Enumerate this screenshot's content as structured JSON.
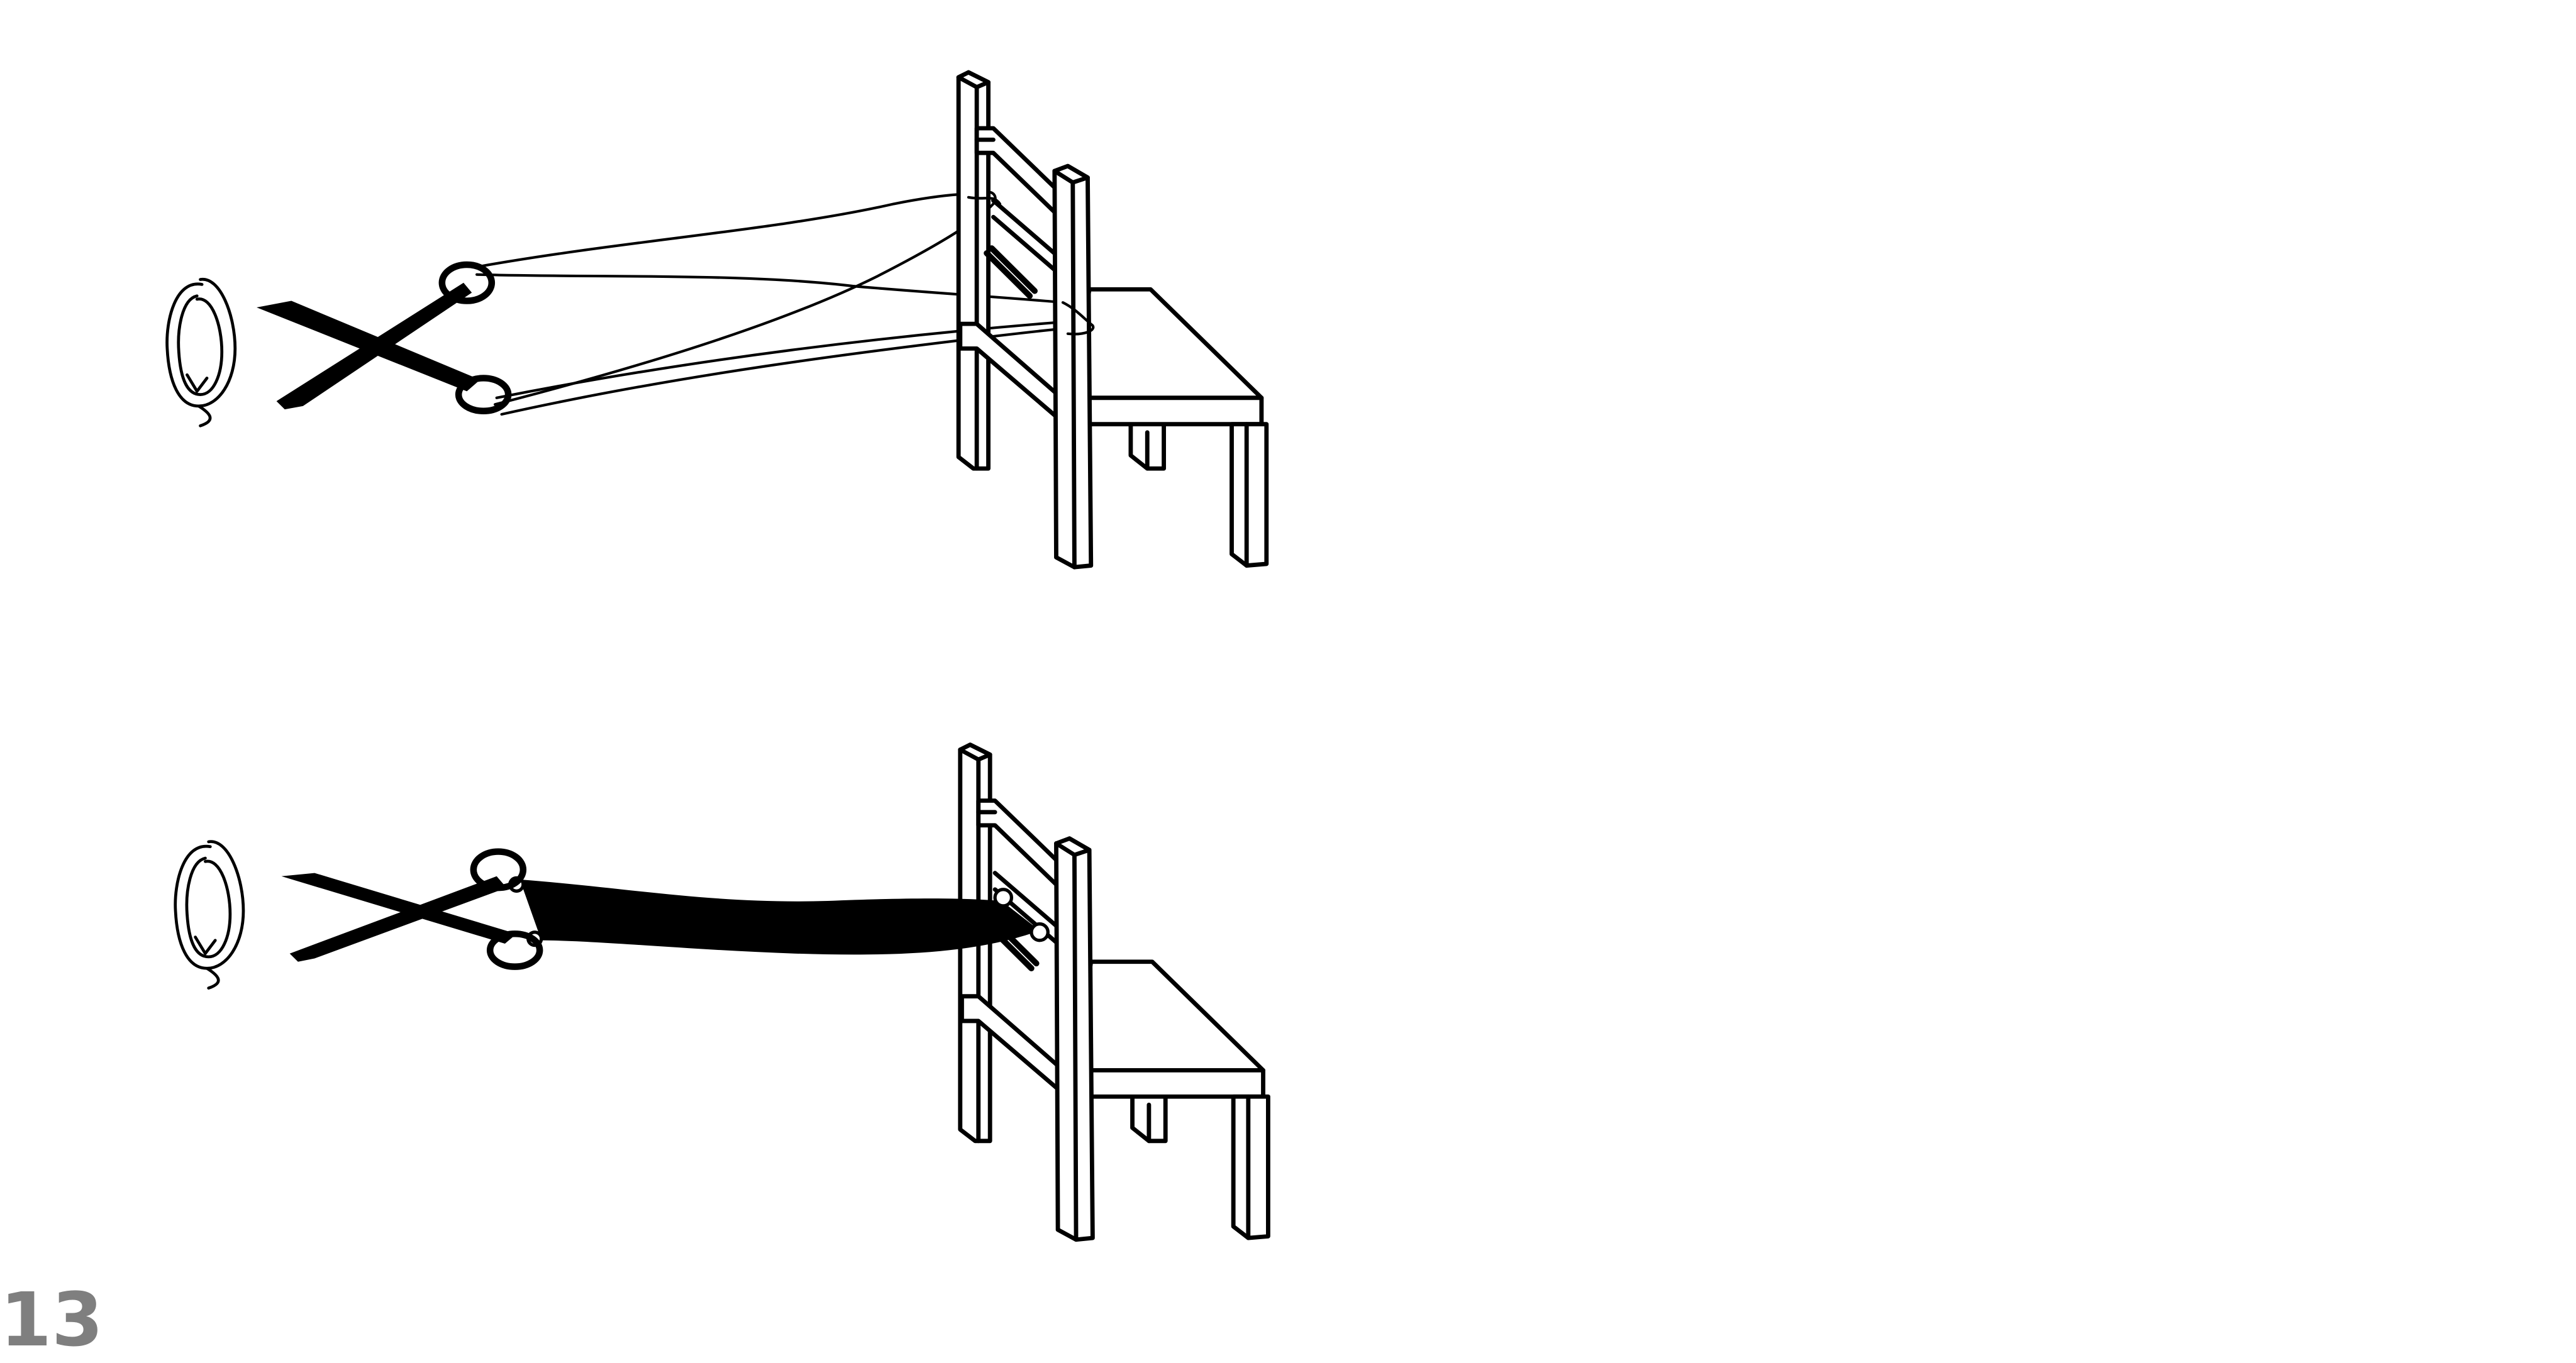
{
  "page": {
    "number": "13"
  },
  "steps": [
    {
      "id": "step-1",
      "string_state": "threads-separate"
    },
    {
      "id": "step-2",
      "string_state": "threads-twisted"
    }
  ],
  "icons": {
    "rotation": "rotate-arrow-icon",
    "tool": "scissors-icon",
    "furniture": "chair-icon"
  },
  "colors": {
    "ink": "#000000",
    "paper": "#ffffff",
    "page_number": "#7f7f7f",
    "shadow": "#9a9a9a"
  }
}
